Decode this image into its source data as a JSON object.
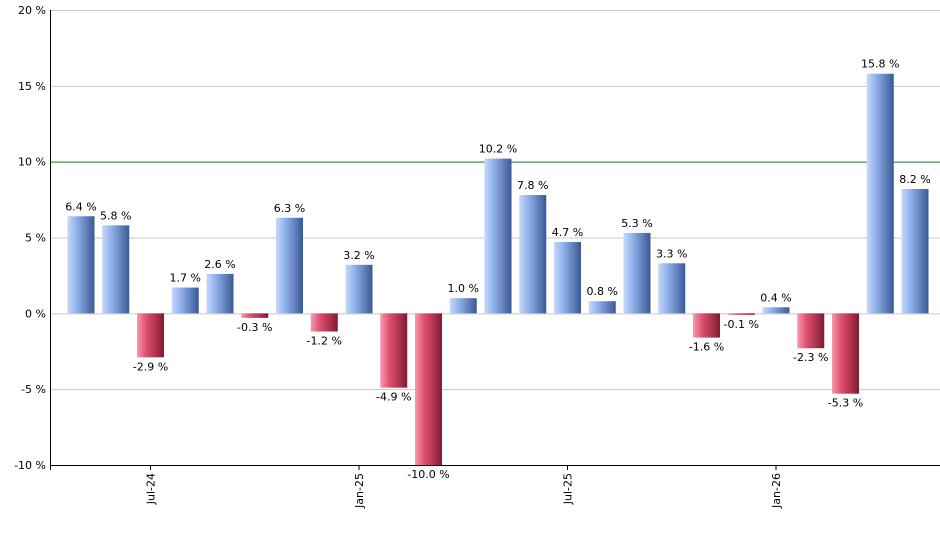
{
  "chart_data": {
    "type": "bar",
    "title": "",
    "xlabel": "",
    "ylabel": "",
    "ylim": [
      -10,
      20
    ],
    "y_ticks": [
      -10,
      -5,
      0,
      5,
      10,
      15,
      20
    ],
    "y_tick_labels": [
      "-10 %",
      "-5 %",
      "0 %",
      "5 %",
      "10 %",
      "15 %",
      "20 %"
    ],
    "x_tick_labels": [
      {
        "label": "Jul-24",
        "index": 2
      },
      {
        "label": "Jan-25",
        "index": 8
      },
      {
        "label": "Jul-25",
        "index": 14
      },
      {
        "label": "Jan-26",
        "index": 20
      }
    ],
    "values": [
      6.4,
      5.8,
      -2.9,
      1.7,
      2.6,
      -0.3,
      6.3,
      -1.2,
      3.2,
      -4.9,
      -10.0,
      1.0,
      10.2,
      7.8,
      4.7,
      0.8,
      5.3,
      3.3,
      -1.6,
      -0.1,
      0.4,
      -2.3,
      -5.3,
      15.8,
      8.2
    ],
    "value_labels": [
      "6.4 %",
      "5.8 %",
      "-2.9 %",
      "1.7 %",
      "2.6 %",
      "-0.3 %",
      "6.3 %",
      "-1.2 %",
      "3.2 %",
      "-4.9 %",
      "-10.0 %",
      "1.0 %",
      "10.2 %",
      "7.8 %",
      "4.7 %",
      "0.8 %",
      "5.3 %",
      "3.3 %",
      "-1.6 %",
      "-0.1 %",
      "0.4 %",
      "-2.3 %",
      "-5.3 %",
      "15.8 %",
      "8.2 %"
    ],
    "reference_line": {
      "value": 10,
      "color": "#2e7d2e"
    },
    "grid": true,
    "colors": {
      "positive_light": "#a9c4f5",
      "positive_dark": "#3f5f9e",
      "negative_light": "#f0758f",
      "negative_dark": "#8e1f38",
      "grid": "#c8c8c8",
      "axis": "#000000"
    }
  }
}
